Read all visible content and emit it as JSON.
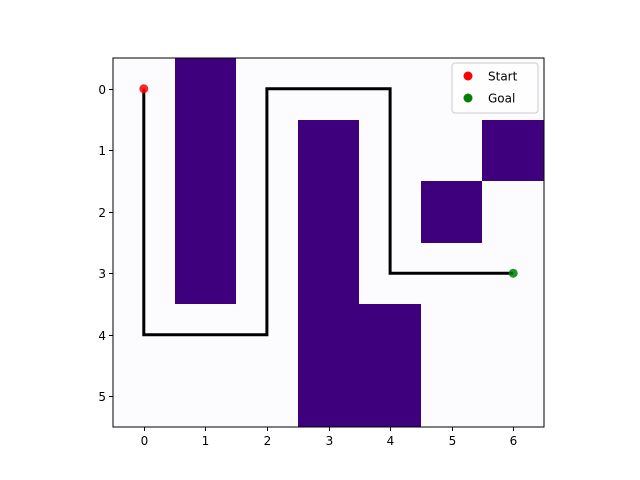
{
  "chart_data": {
    "type": "heatmap",
    "title": "",
    "xlabel": "",
    "ylabel": "",
    "xlim": [
      -0.5,
      6.5
    ],
    "ylim": [
      5.5,
      -0.5
    ],
    "y_inverted": true,
    "grid": false,
    "x_ticks": [
      0,
      1,
      2,
      3,
      4,
      5,
      6
    ],
    "y_ticks": [
      0,
      1,
      2,
      3,
      4,
      5
    ],
    "x_tick_labels": [
      "0",
      "1",
      "2",
      "3",
      "4",
      "5",
      "6"
    ],
    "y_tick_labels": [
      "0",
      "1",
      "2",
      "3",
      "4",
      "5"
    ],
    "grid_values": [
      [
        0,
        1,
        0,
        0,
        0,
        0,
        0
      ],
      [
        0,
        1,
        0,
        1,
        0,
        0,
        1
      ],
      [
        0,
        1,
        0,
        1,
        0,
        1,
        0
      ],
      [
        0,
        1,
        0,
        1,
        0,
        0,
        0
      ],
      [
        0,
        0,
        0,
        1,
        1,
        0,
        0
      ],
      [
        0,
        0,
        0,
        1,
        1,
        0,
        0
      ]
    ],
    "cell_colors": {
      "0": "#fcfbfd",
      "1": "#3f007d"
    },
    "path": {
      "color": "#000000",
      "points": [
        [
          0,
          0
        ],
        [
          0,
          4
        ],
        [
          2,
          4
        ],
        [
          2,
          0
        ],
        [
          4,
          0
        ],
        [
          4,
          3
        ],
        [
          6,
          3
        ]
      ]
    },
    "markers": [
      {
        "name": "Start",
        "x": 0,
        "y": 0,
        "color": "#ff0000"
      },
      {
        "name": "Goal",
        "x": 6,
        "y": 3,
        "color": "#008000"
      }
    ],
    "legend": {
      "placement": "upper right",
      "entries": [
        {
          "label": "Start",
          "color": "#ff0000"
        },
        {
          "label": "Goal",
          "color": "#008000"
        }
      ]
    }
  }
}
